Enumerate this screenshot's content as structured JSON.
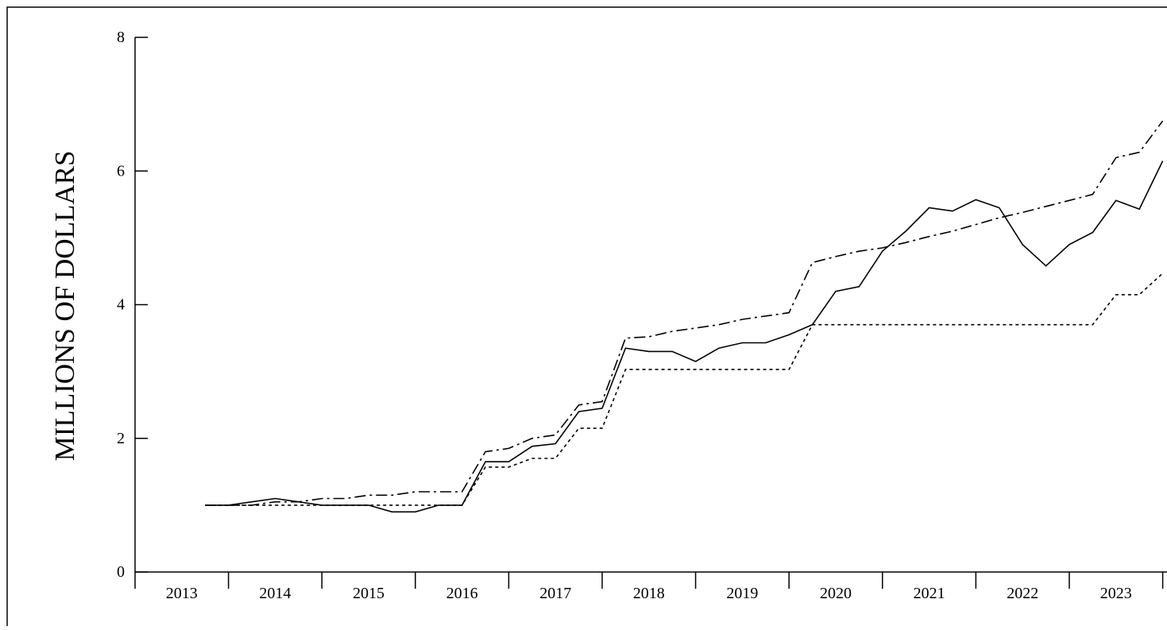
{
  "chart_data": {
    "type": "line",
    "title": "",
    "xlabel": "",
    "ylabel": "MILLIONS OF DOLLARS",
    "ylim": [
      0,
      8
    ],
    "xlim": [
      2013,
      2024
    ],
    "yticks": [
      0,
      2,
      4,
      6,
      8
    ],
    "xticks": [
      2013,
      2014,
      2015,
      2016,
      2017,
      2018,
      2019,
      2020,
      2021,
      2022,
      2023
    ],
    "x_tick_labels": [
      "2013",
      "2014",
      "2015",
      "2016",
      "2017",
      "2018",
      "2019",
      "2020",
      "2021",
      "2022",
      "2023"
    ],
    "y_tick_labels": [
      "0",
      "2",
      "4",
      "6",
      "8"
    ],
    "grid": false,
    "legend": "none",
    "series": [
      {
        "style": "solid",
        "x": [
          2013.75,
          2014.0,
          2014.25,
          2014.5,
          2014.75,
          2015.0,
          2015.25,
          2015.5,
          2015.75,
          2016.0,
          2016.25,
          2016.5,
          2016.75,
          2017.0,
          2017.25,
          2017.5,
          2017.75,
          2018.0,
          2018.25,
          2018.5,
          2018.75,
          2019.0,
          2019.25,
          2019.5,
          2019.75,
          2020.0,
          2020.25,
          2020.5,
          2020.75,
          2021.0,
          2021.25,
          2021.5,
          2021.75,
          2022.0,
          2022.25,
          2022.5,
          2022.75,
          2023.0,
          2023.25,
          2023.5,
          2023.75,
          2024.0
        ],
        "y": [
          1.0,
          1.0,
          1.05,
          1.1,
          1.05,
          1.0,
          1.0,
          1.0,
          0.9,
          0.9,
          1.0,
          1.0,
          1.65,
          1.65,
          1.88,
          1.92,
          2.4,
          2.45,
          3.35,
          3.3,
          3.3,
          3.15,
          3.35,
          3.43,
          3.43,
          3.55,
          3.7,
          4.2,
          4.27,
          4.8,
          5.1,
          5.45,
          5.4,
          5.57,
          5.45,
          4.9,
          4.58,
          4.9,
          5.08,
          5.56,
          5.43,
          6.15
        ]
      },
      {
        "style": "dashdot",
        "x": [
          2013.75,
          2014.0,
          2014.25,
          2014.5,
          2014.75,
          2015.0,
          2015.25,
          2015.5,
          2015.75,
          2016.0,
          2016.25,
          2016.5,
          2016.75,
          2017.0,
          2017.25,
          2017.5,
          2017.75,
          2018.0,
          2018.25,
          2018.5,
          2018.75,
          2019.0,
          2019.25,
          2019.5,
          2019.75,
          2020.0,
          2020.25,
          2020.5,
          2020.75,
          2021.0,
          2021.25,
          2021.5,
          2021.75,
          2022.0,
          2022.25,
          2022.5,
          2022.75,
          2023.0,
          2023.25,
          2023.5,
          2023.75,
          2024.0
        ],
        "y": [
          1.0,
          1.0,
          1.0,
          1.05,
          1.05,
          1.1,
          1.1,
          1.15,
          1.15,
          1.2,
          1.2,
          1.2,
          1.8,
          1.85,
          2.0,
          2.05,
          2.5,
          2.55,
          3.5,
          3.52,
          3.6,
          3.65,
          3.7,
          3.78,
          3.83,
          3.88,
          4.63,
          4.72,
          4.8,
          4.85,
          4.93,
          5.02,
          5.1,
          5.2,
          5.3,
          5.38,
          5.47,
          5.56,
          5.65,
          6.2,
          6.28,
          6.75
        ]
      },
      {
        "style": "dotted",
        "x": [
          2013.75,
          2014.0,
          2014.25,
          2014.5,
          2014.75,
          2015.0,
          2015.25,
          2015.5,
          2015.75,
          2016.0,
          2016.25,
          2016.5,
          2016.75,
          2017.0,
          2017.25,
          2017.5,
          2017.75,
          2018.0,
          2018.25,
          2018.5,
          2018.75,
          2019.0,
          2019.25,
          2019.5,
          2019.75,
          2020.0,
          2020.25,
          2020.5,
          2020.75,
          2021.0,
          2021.25,
          2021.5,
          2021.75,
          2022.0,
          2022.25,
          2022.5,
          2022.75,
          2023.0,
          2023.25,
          2023.5,
          2023.75,
          2024.0
        ],
        "y": [
          1.0,
          1.0,
          1.0,
          1.0,
          1.0,
          1.0,
          1.0,
          1.0,
          1.0,
          1.0,
          1.0,
          1.0,
          1.57,
          1.57,
          1.7,
          1.7,
          2.15,
          2.15,
          3.03,
          3.03,
          3.03,
          3.03,
          3.03,
          3.03,
          3.03,
          3.03,
          3.7,
          3.7,
          3.7,
          3.7,
          3.7,
          3.7,
          3.7,
          3.7,
          3.7,
          3.7,
          3.7,
          3.7,
          3.7,
          4.15,
          4.15,
          4.47
        ]
      }
    ]
  }
}
